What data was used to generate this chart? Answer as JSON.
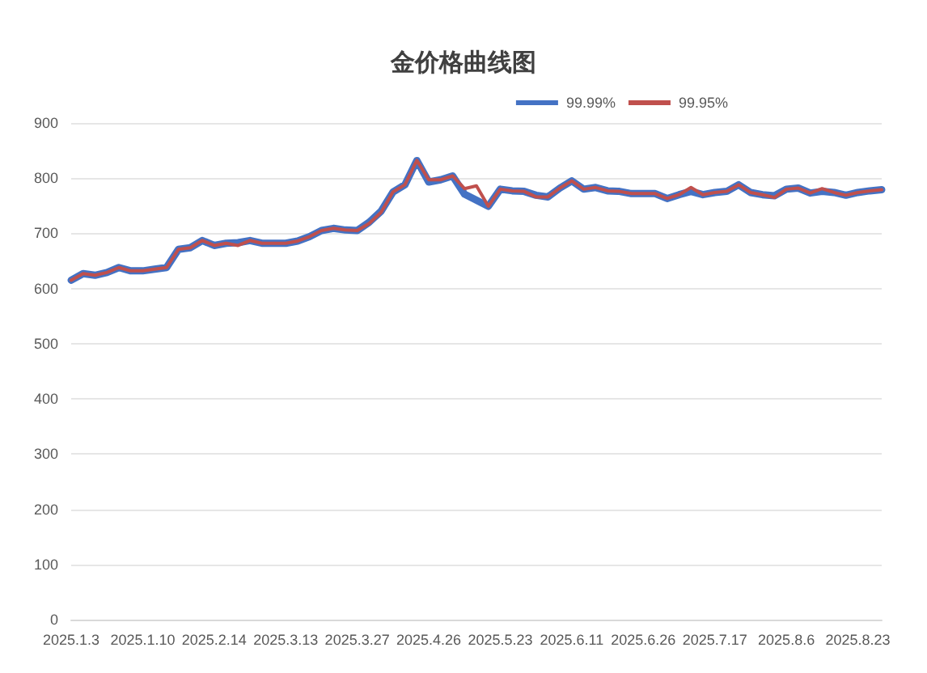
{
  "chart_data": {
    "type": "line",
    "title": "金价格曲线图",
    "categories": [
      "2025.1.3",
      null,
      null,
      null,
      null,
      null,
      "2025.1.10",
      null,
      null,
      null,
      null,
      null,
      "2025.2.14",
      null,
      null,
      null,
      null,
      null,
      "2025.3.13",
      null,
      null,
      null,
      null,
      null,
      "2025.3.27",
      null,
      null,
      null,
      null,
      null,
      "2025.4.26",
      null,
      null,
      null,
      null,
      null,
      "2025.5.23",
      null,
      null,
      null,
      null,
      null,
      "2025.6.11",
      null,
      null,
      null,
      null,
      null,
      "2025.6.26",
      null,
      null,
      null,
      null,
      null,
      "2025.7.17",
      null,
      null,
      null,
      null,
      null,
      "2025.8.6",
      null,
      null,
      null,
      null,
      null,
      "2025.8.23",
      null,
      null
    ],
    "series": [
      {
        "name": "99.99%",
        "color": "#4472c4",
        "values": [
          615,
          627,
          624,
          629,
          638,
          632,
          632,
          635,
          638,
          671,
          674,
          687,
          678,
          682,
          683,
          687,
          682,
          682,
          682,
          686,
          694,
          705,
          709,
          706,
          705,
          720,
          740,
          775,
          788,
          832,
          793,
          797,
          804,
          771,
          760,
          749,
          780,
          777,
          776,
          769,
          766,
          782,
          795,
          780,
          783,
          777,
          776,
          772,
          772,
          772,
          763,
          770,
          776,
          770,
          774,
          776,
          788,
          774,
          770,
          768,
          780,
          782,
          773,
          776,
          774,
          769,
          774,
          777,
          779
        ]
      },
      {
        "name": "99.95%",
        "color": "#c0504d",
        "values": [
          615,
          627,
          624,
          629,
          638,
          632,
          632,
          635,
          638,
          671,
          674,
          687,
          678,
          682,
          678,
          687,
          682,
          682,
          682,
          686,
          694,
          705,
          709,
          706,
          705,
          718,
          738,
          775,
          788,
          832,
          797,
          797,
          804,
          781,
          786,
          749,
          780,
          777,
          776,
          766,
          766,
          782,
          795,
          780,
          783,
          777,
          776,
          772,
          772,
          772,
          763,
          770,
          783,
          770,
          774,
          776,
          788,
          774,
          770,
          765,
          780,
          782,
          773,
          781,
          774,
          769,
          774,
          777,
          779
        ]
      }
    ],
    "ylim": [
      0,
      900
    ],
    "yticks": [
      0,
      100,
      200,
      300,
      400,
      500,
      600,
      700,
      800,
      900
    ],
    "grid": "y",
    "legend": "top right",
    "marker": "none",
    "line_style": "solid"
  }
}
